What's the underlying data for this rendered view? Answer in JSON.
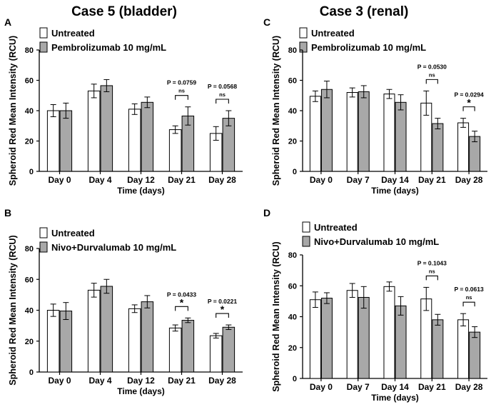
{
  "titles": {
    "left": "Case 5 (bladder)",
    "right": "Case 3 (renal)"
  },
  "colors": {
    "untreated": "#ffffff",
    "treated": "#a8a8a8",
    "stroke": "#000000"
  },
  "chart_data": [
    {
      "panel": "A",
      "type": "bar",
      "legend": [
        "Untreated",
        "Pembrolizumab 10 mg/mL"
      ],
      "categories": [
        "Day 0",
        "Day 4",
        "Day 12",
        "Day 21",
        "Day 28"
      ],
      "series": [
        {
          "name": "Untreated",
          "values": [
            40,
            53,
            41,
            27.5,
            25
          ],
          "errors": [
            4,
            4.5,
            3.5,
            2.5,
            4.5
          ]
        },
        {
          "name": "Pembrolizumab 10 mg/mL",
          "values": [
            40,
            56.5,
            45.5,
            36.5,
            35
          ],
          "errors": [
            5,
            4,
            3.5,
            6,
            5
          ]
        }
      ],
      "ylim": [
        0,
        80
      ],
      "yticks": [
        "0",
        "20",
        "40",
        "60",
        "80"
      ],
      "ylabel": "Spheroid Red Mean Intensity (RCU)",
      "xlabel": "Time (days)",
      "annotations": [
        {
          "category_index": 3,
          "p": "P = 0.0759",
          "sig": "ns"
        },
        {
          "category_index": 4,
          "p": "P = 0.0568",
          "sig": "ns"
        }
      ]
    },
    {
      "panel": "C",
      "type": "bar",
      "legend": [
        "Untreated",
        "Pembrolizumab 10 mg/mL"
      ],
      "categories": [
        "Day 0",
        "Day 7",
        "Day 14",
        "Day 21",
        "Day 28"
      ],
      "series": [
        {
          "name": "Untreated",
          "values": [
            49.5,
            52,
            51,
            45,
            32
          ],
          "errors": [
            3.5,
            3,
            3,
            8,
            3
          ]
        },
        {
          "name": "Pembrolizumab 10 mg/mL",
          "values": [
            54,
            52.5,
            45.5,
            31.5,
            23
          ],
          "errors": [
            5.5,
            4,
            5,
            3.5,
            3.5
          ]
        }
      ],
      "ylim": [
        0,
        80
      ],
      "yticks": [
        "0",
        "20",
        "40",
        "60",
        "80"
      ],
      "ylabel": "Spheroid Red Mean Intensity (RCU)",
      "xlabel": "Time (days)",
      "annotations": [
        {
          "category_index": 3,
          "p": "P = 0.0530",
          "sig": "ns"
        },
        {
          "category_index": 4,
          "p": "P = 0.0294",
          "sig": "*"
        }
      ]
    },
    {
      "panel": "B",
      "type": "bar",
      "legend": [
        "Untreated",
        "Nivo+Durvalumab 10 mg/mL"
      ],
      "categories": [
        "Day 0",
        "Day 4",
        "Day 12",
        "Day 21",
        "Day 28"
      ],
      "series": [
        {
          "name": "Untreated",
          "values": [
            40,
            53,
            41,
            28.5,
            23.5
          ],
          "errors": [
            4,
            4.5,
            2.5,
            2,
            1.5
          ]
        },
        {
          "name": "Nivo+Durvalumab 10 mg/mL",
          "values": [
            39.5,
            55.5,
            45.5,
            33.5,
            29
          ],
          "errors": [
            5.5,
            4.5,
            4,
            1.5,
            1.5
          ]
        }
      ],
      "ylim": [
        0,
        80
      ],
      "yticks": [
        "0",
        "20",
        "40",
        "60",
        "80"
      ],
      "ylabel": "Spheroid Red Mean Intensity (RCU)",
      "xlabel": "Time (days)",
      "annotations": [
        {
          "category_index": 3,
          "p": "P = 0.0433",
          "sig": "*"
        },
        {
          "category_index": 4,
          "p": "P = 0.0221",
          "sig": "*"
        }
      ]
    },
    {
      "panel": "D",
      "type": "bar",
      "legend": [
        "Untreated",
        "Nivo+Durvalumab 10 mg/mL"
      ],
      "categories": [
        "Day 0",
        "Day 7",
        "Day 14",
        "Day 21",
        "Day 28"
      ],
      "series": [
        {
          "name": "Untreated",
          "values": [
            51,
            57,
            59.5,
            51.5,
            38
          ],
          "errors": [
            5,
            4.5,
            3,
            7.5,
            4
          ]
        },
        {
          "name": "Nivo+Durvalumab 10 mg/mL",
          "values": [
            52,
            52.5,
            47,
            38,
            30
          ],
          "errors": [
            3.5,
            7,
            6,
            3.5,
            3.5
          ]
        }
      ],
      "ylim": [
        0,
        80
      ],
      "yticks": [
        "0",
        "20",
        "40",
        "60",
        "80"
      ],
      "ylabel": "Spheroid Red Mean Intensity (RCU)",
      "xlabel": "Time (days)",
      "annotations": [
        {
          "category_index": 3,
          "p": "P = 0.1043",
          "sig": "ns"
        },
        {
          "category_index": 4,
          "p": "P = 0.0613",
          "sig": "ns"
        }
      ]
    }
  ]
}
